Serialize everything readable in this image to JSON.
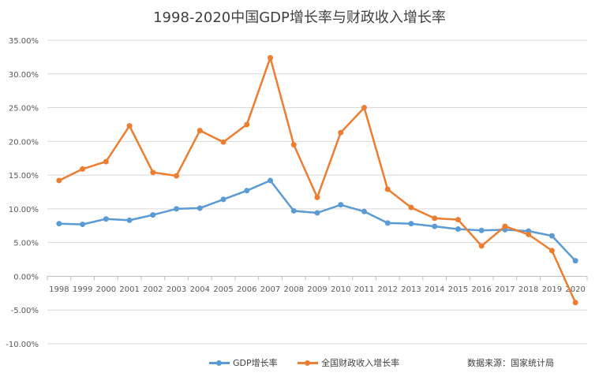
{
  "chart_data": {
    "type": "line",
    "title": "1998-2020中国GDP增长率与财政收入增长率",
    "xlabel": "",
    "ylabel": "",
    "categories": [
      "1998",
      "1999",
      "2000",
      "2001",
      "2002",
      "2003",
      "2004",
      "2005",
      "2006",
      "2007",
      "2008",
      "2009",
      "2010",
      "2011",
      "2012",
      "2013",
      "2014",
      "2015",
      "2016",
      "2017",
      "2018",
      "2019",
      "2020"
    ],
    "y_ticks": [
      "35.00%",
      "30.00%",
      "25.00%",
      "20.00%",
      "15.00%",
      "10.00%",
      "5.00%",
      "0.00%",
      "-5.00%",
      "-10.00%"
    ],
    "ylim": [
      -10,
      35
    ],
    "grid": true,
    "legend_position": "bottom",
    "series": [
      {
        "name": "GDP增长率",
        "color": "#5b9bd5",
        "values": [
          7.8,
          7.7,
          8.5,
          8.3,
          9.1,
          10.0,
          10.1,
          11.4,
          12.7,
          14.2,
          9.7,
          9.4,
          10.6,
          9.6,
          7.9,
          7.8,
          7.4,
          7.0,
          6.8,
          6.9,
          6.7,
          6.0,
          2.3
        ]
      },
      {
        "name": "全国财政收入增长率",
        "color": "#ed7d31",
        "values": [
          14.2,
          15.9,
          17.0,
          22.3,
          15.4,
          14.9,
          21.6,
          19.9,
          22.5,
          32.4,
          19.5,
          11.7,
          21.3,
          25.0,
          12.9,
          10.2,
          8.6,
          8.4,
          4.5,
          7.4,
          6.2,
          3.8,
          -3.9
        ]
      }
    ],
    "source_note": "数据来源：国家统计局"
  }
}
